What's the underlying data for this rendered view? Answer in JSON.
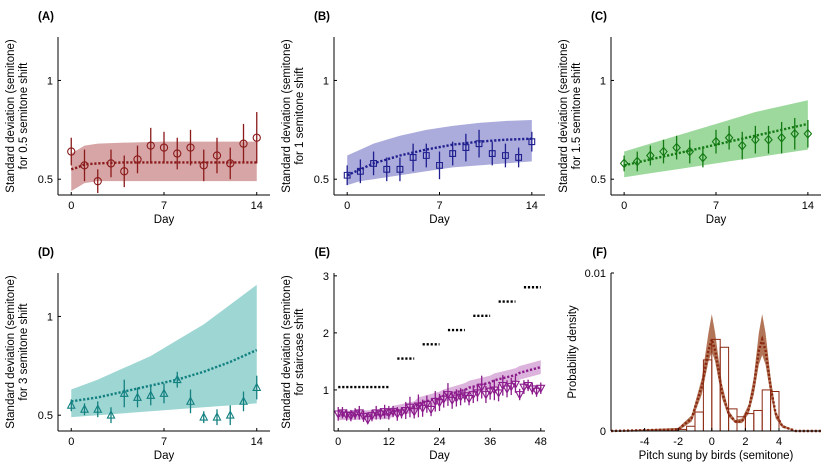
{
  "colors": {
    "A": "#8b1a1a",
    "A_band": "#c98787",
    "B": "#1f1f8f",
    "B_band": "#8f8fd0",
    "C": "#137a13",
    "C_band": "#7ccc7c",
    "D": "#128080",
    "D_band": "#7cc8c4",
    "E": "#8b1a8b",
    "E_band": "#d09ad0",
    "F": "#8b2a12",
    "F_band": "#a0522d",
    "step": "#000000"
  },
  "chart_data": [
    {
      "panel": "(A)",
      "type": "scatter",
      "xlabel": "Day",
      "ylabel": [
        "Standard deviation (semitone)",
        "for 0.5 semitone shift"
      ],
      "xlim": [
        -1,
        15
      ],
      "ylim": [
        0.42,
        1.22
      ],
      "xticks": [
        "0",
        "7",
        "14"
      ],
      "yticks": [
        "0.5",
        "1"
      ],
      "marker": "circle",
      "x": [
        0,
        1,
        2,
        3,
        4,
        5,
        6,
        7,
        8,
        9,
        10,
        11,
        12,
        13,
        14
      ],
      "y": [
        0.64,
        0.57,
        0.49,
        0.58,
        0.54,
        0.6,
        0.67,
        0.66,
        0.63,
        0.66,
        0.57,
        0.62,
        0.58,
        0.68,
        0.71
      ],
      "err": [
        0.07,
        0.08,
        0.06,
        0.07,
        0.08,
        0.07,
        0.09,
        0.08,
        0.08,
        0.09,
        0.08,
        0.09,
        0.08,
        0.1,
        0.13
      ],
      "model_x": [
        0,
        0.5,
        1,
        2,
        4,
        7,
        10,
        14
      ],
      "model_mean": [
        0.55,
        0.56,
        0.575,
        0.58,
        0.585,
        0.585,
        0.585,
        0.585
      ],
      "band_lo": [
        0.44,
        0.46,
        0.48,
        0.49,
        0.49,
        0.49,
        0.49,
        0.49
      ],
      "band_hi": [
        0.63,
        0.65,
        0.67,
        0.68,
        0.685,
        0.69,
        0.69,
        0.69
      ]
    },
    {
      "panel": "(B)",
      "type": "scatter",
      "xlabel": "Day",
      "ylabel": [
        "Standard deviation (semitone)",
        "for 1 semitone shift"
      ],
      "xlim": [
        -1,
        15
      ],
      "ylim": [
        0.42,
        1.22
      ],
      "xticks": [
        "0",
        "7",
        "14"
      ],
      "yticks": [
        "0.5",
        "1"
      ],
      "marker": "square",
      "x": [
        0,
        1,
        2,
        3,
        4,
        5,
        6,
        7,
        8,
        9,
        10,
        11,
        12,
        13,
        14
      ],
      "y": [
        0.52,
        0.54,
        0.58,
        0.55,
        0.55,
        0.61,
        0.62,
        0.57,
        0.63,
        0.66,
        0.68,
        0.63,
        0.62,
        0.61,
        0.69
      ],
      "err": [
        0.05,
        0.06,
        0.06,
        0.06,
        0.06,
        0.07,
        0.06,
        0.07,
        0.06,
        0.07,
        0.07,
        0.06,
        0.06,
        0.05,
        0.05
      ],
      "model_x": [
        0,
        1,
        2,
        4,
        6,
        8,
        10,
        12,
        14
      ],
      "model_mean": [
        0.52,
        0.55,
        0.58,
        0.62,
        0.65,
        0.675,
        0.69,
        0.7,
        0.705
      ],
      "band_lo": [
        0.47,
        0.49,
        0.5,
        0.52,
        0.54,
        0.56,
        0.57,
        0.58,
        0.59
      ],
      "band_hi": [
        0.62,
        0.65,
        0.68,
        0.72,
        0.75,
        0.77,
        0.785,
        0.795,
        0.8
      ]
    },
    {
      "panel": "(C)",
      "type": "scatter",
      "xlabel": "Day",
      "ylabel": [
        "Standard deviation (semitone)",
        "for 1.5 semitone shift"
      ],
      "xlim": [
        -1,
        15
      ],
      "ylim": [
        0.42,
        1.22
      ],
      "xticks": [
        "0",
        "7",
        "14"
      ],
      "yticks": [
        "0.5",
        "1"
      ],
      "marker": "diamond",
      "x": [
        0,
        1,
        2,
        3,
        4,
        5,
        6,
        7,
        8,
        9,
        10,
        11,
        12,
        13,
        14
      ],
      "y": [
        0.58,
        0.59,
        0.62,
        0.64,
        0.66,
        0.64,
        0.61,
        0.69,
        0.71,
        0.67,
        0.7,
        0.7,
        0.71,
        0.73,
        0.73
      ],
      "err": [
        0.04,
        0.05,
        0.05,
        0.06,
        0.06,
        0.06,
        0.05,
        0.06,
        0.06,
        0.07,
        0.07,
        0.07,
        0.08,
        0.08,
        0.07
      ],
      "model_x": [
        0,
        2,
        4,
        6,
        8,
        10,
        12,
        14
      ],
      "model_mean": [
        0.57,
        0.6,
        0.63,
        0.66,
        0.69,
        0.72,
        0.75,
        0.78
      ],
      "band_lo": [
        0.51,
        0.53,
        0.55,
        0.57,
        0.59,
        0.61,
        0.63,
        0.65
      ],
      "band_hi": [
        0.64,
        0.68,
        0.72,
        0.76,
        0.8,
        0.84,
        0.87,
        0.9
      ]
    },
    {
      "panel": "(D)",
      "type": "scatter",
      "xlabel": "Day",
      "ylabel": [
        "Standard deviation (semitone)",
        "for 3 semitone shift"
      ],
      "xlim": [
        -1,
        15
      ],
      "ylim": [
        0.42,
        1.22
      ],
      "xticks": [
        "0",
        "7",
        "14"
      ],
      "yticks": [
        "0.5",
        "1"
      ],
      "marker": "triangle-up",
      "x": [
        0,
        1,
        2,
        3,
        4,
        5,
        6,
        7,
        8,
        9,
        10,
        11,
        12,
        13,
        14
      ],
      "y": [
        0.55,
        0.53,
        0.53,
        0.5,
        0.61,
        0.59,
        0.6,
        0.61,
        0.68,
        0.57,
        0.49,
        0.49,
        0.5,
        0.57,
        0.64
      ],
      "err": [
        0.03,
        0.03,
        0.04,
        0.04,
        0.07,
        0.05,
        0.05,
        0.05,
        0.04,
        0.06,
        0.03,
        0.04,
        0.05,
        0.05,
        0.06
      ],
      "model_x": [
        0,
        2,
        4,
        6,
        8,
        10,
        12,
        14
      ],
      "model_mean": [
        0.57,
        0.59,
        0.62,
        0.65,
        0.68,
        0.72,
        0.77,
        0.83
      ],
      "band_lo": [
        0.49,
        0.5,
        0.51,
        0.52,
        0.53,
        0.54,
        0.55,
        0.56
      ],
      "band_hi": [
        0.63,
        0.68,
        0.74,
        0.8,
        0.88,
        0.96,
        1.06,
        1.16
      ]
    },
    {
      "panel": "(E)",
      "type": "scatter",
      "xlabel": "Day",
      "ylabel": [
        "Standard deviation (semitone)",
        "for staircase shift"
      ],
      "xlim": [
        -1,
        49
      ],
      "ylim": [
        0.28,
        3.05
      ],
      "xticks": [
        "0",
        "12",
        "24",
        "36",
        "48"
      ],
      "yticks": [
        "1",
        "2",
        "3"
      ],
      "marker": "triangle-down",
      "step_segments": [
        {
          "x0": 0,
          "x1": 12,
          "y": 0.5
        },
        {
          "x0": 14,
          "x1": 18,
          "y": 1.0
        },
        {
          "x0": 20,
          "x1": 24,
          "y": 1.25
        },
        {
          "x0": 26,
          "x1": 30,
          "y": 1.5
        },
        {
          "x0": 32,
          "x1": 36,
          "y": 1.75
        },
        {
          "x0": 38,
          "x1": 42,
          "y": 2.0
        },
        {
          "x0": 44,
          "x1": 48,
          "y": 2.25
        }
      ],
      "step_offset": 0.55,
      "x": [
        0,
        1,
        2,
        3,
        4,
        5,
        6,
        7,
        8,
        9,
        10,
        11,
        12,
        13,
        14,
        15,
        16,
        17,
        18,
        19,
        20,
        21,
        22,
        23,
        24,
        25,
        26,
        27,
        28,
        29,
        30,
        31,
        32,
        33,
        34,
        35,
        36,
        37,
        38,
        39,
        40,
        41,
        42,
        43,
        44,
        45,
        46,
        47,
        48
      ],
      "y": [
        0.58,
        0.6,
        0.56,
        0.55,
        0.58,
        0.6,
        0.54,
        0.48,
        0.55,
        0.6,
        0.58,
        0.62,
        0.6,
        0.62,
        0.58,
        0.6,
        0.64,
        0.7,
        0.62,
        0.72,
        0.68,
        0.75,
        0.66,
        0.8,
        0.78,
        0.84,
        0.92,
        0.82,
        0.86,
        0.88,
        0.9,
        0.85,
        0.92,
        0.95,
        1.05,
        0.92,
        0.98,
        1.0,
        0.95,
        1.08,
        1.02,
        1.06,
        1.1,
        0.92,
        1.05,
        1.08,
        1.02,
        0.98,
        1.03
      ],
      "err": [
        0.12,
        0.1,
        0.1,
        0.1,
        0.1,
        0.12,
        0.1,
        0.08,
        0.1,
        0.12,
        0.1,
        0.12,
        0.12,
        0.1,
        0.12,
        0.1,
        0.15,
        0.18,
        0.12,
        0.2,
        0.15,
        0.15,
        0.12,
        0.18,
        0.15,
        0.15,
        0.2,
        0.15,
        0.15,
        0.15,
        0.12,
        0.12,
        0.15,
        0.15,
        0.2,
        0.15,
        0.15,
        0.18,
        0.15,
        0.18,
        0.15,
        0.15,
        0.15,
        0.1,
        0.12,
        0.1,
        0.1,
        0.1,
        0.1
      ],
      "model_x": [
        0,
        6,
        12,
        13,
        18,
        19,
        24,
        25,
        30,
        31,
        36,
        37,
        42,
        43,
        48
      ],
      "model_mean": [
        0.55,
        0.56,
        0.57,
        0.63,
        0.7,
        0.76,
        0.86,
        0.9,
        1.0,
        1.04,
        1.13,
        1.17,
        1.26,
        1.3,
        1.4
      ],
      "band_lo": [
        0.47,
        0.48,
        0.49,
        0.54,
        0.6,
        0.65,
        0.75,
        0.79,
        0.88,
        0.92,
        1.01,
        1.05,
        1.14,
        1.18,
        1.28
      ],
      "band_hi": [
        0.63,
        0.64,
        0.66,
        0.72,
        0.8,
        0.87,
        0.97,
        1.01,
        1.12,
        1.16,
        1.25,
        1.29,
        1.38,
        1.42,
        1.52
      ]
    },
    {
      "panel": "(F)",
      "type": "bar",
      "xlabel": "Pitch sung by birds (semitone)",
      "ylabel": [
        "Probability density"
      ],
      "xlim": [
        -6,
        6.5
      ],
      "ylim": [
        0,
        0.01
      ],
      "xticks": [
        "-4",
        "-2",
        "0",
        "2",
        "4"
      ],
      "yticks": [
        "0",
        "0.01"
      ],
      "bin_edges": [
        -2,
        -1.5,
        -1,
        -0.5,
        0,
        0.5,
        1,
        1.5,
        2,
        2.5,
        3,
        3.5,
        4
      ],
      "hist_values": [
        0.0001,
        0.0003,
        0.0012,
        0.0045,
        0.0058,
        0.0053,
        0.0014,
        0.0009,
        0.0011,
        0.0013,
        0.0026,
        0.0025
      ],
      "density_x": [
        -6,
        -2,
        -1.2,
        -0.6,
        -0.2,
        0,
        0.2,
        0.6,
        1,
        1.4,
        1.8,
        2.2,
        2.5,
        2.8,
        3,
        3.2,
        3.5,
        3.8,
        4.2,
        5,
        6.5
      ],
      "density_mean": [
        0,
        0.0001,
        0.0008,
        0.0028,
        0.0051,
        0.0058,
        0.0051,
        0.0025,
        0.0011,
        0.0006,
        0.0006,
        0.0014,
        0.0028,
        0.0051,
        0.0058,
        0.0051,
        0.0028,
        0.0011,
        0.0003,
        0,
        0
      ],
      "density_lo": [
        0,
        0,
        0.0006,
        0.0023,
        0.0044,
        0.005,
        0.0044,
        0.0021,
        0.0009,
        0.0005,
        0.0005,
        0.0011,
        0.0023,
        0.0042,
        0.0048,
        0.0042,
        0.0023,
        0.0008,
        0.0002,
        0,
        0
      ],
      "density_hi": [
        0,
        0.0002,
        0.001,
        0.0033,
        0.0062,
        0.0074,
        0.0062,
        0.003,
        0.0013,
        0.0007,
        0.0008,
        0.0017,
        0.0034,
        0.0062,
        0.0074,
        0.0062,
        0.0034,
        0.0013,
        0.0004,
        0,
        0
      ]
    }
  ]
}
